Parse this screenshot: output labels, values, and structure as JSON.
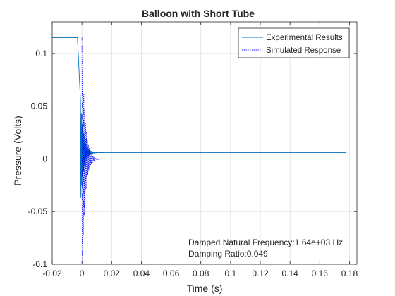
{
  "chart_data": {
    "type": "line",
    "title": "Balloon with Short Tube",
    "xlabel": "Time (s)",
    "ylabel": "Pressure (Volts)",
    "xlim": [
      -0.02,
      0.185
    ],
    "ylim": [
      -0.1,
      0.13
    ],
    "x_ticks": [
      -0.02,
      0,
      0.02,
      0.04,
      0.06,
      0.08,
      0.1,
      0.12,
      0.14,
      0.16,
      0.18
    ],
    "x_tick_labels": [
      "-0.02",
      "0",
      "0.02",
      "0.04",
      "0.06",
      "0.08",
      "0.1",
      "0.12",
      "0.14",
      "0.16",
      "0.18"
    ],
    "y_ticks": [
      -0.1,
      -0.05,
      0,
      0.05,
      0.1
    ],
    "y_tick_labels": [
      "-0.1",
      "-0.05",
      "0",
      "0.05",
      "0.1"
    ],
    "grid": true,
    "legend_position": "top-right",
    "series": [
      {
        "name": "Experimental Results",
        "style": "solid",
        "color": "#0072bd",
        "initial_value": 0.115,
        "step_start": -0.003,
        "step_end": -0.001,
        "equilibrium": 0.006,
        "oscillation_start": -0.001,
        "oscillation_amplitude": 0.05,
        "frequency_hz": 1640,
        "damping_ratio": 0.049,
        "end_time": 0.178
      },
      {
        "name": "Simulated Response",
        "style": "dotted",
        "color": "#0000ff",
        "initial_value": 0.115,
        "start_time": 0,
        "equilibrium": 0,
        "frequency_hz": 1640,
        "damping_ratio": 0.049,
        "end_time": 0.06
      }
    ],
    "annotations": [
      "Damped Natural Frequency:1.64e+03 Hz",
      "Damping Ratio:0.049"
    ]
  },
  "colors": {
    "axis": "#262626",
    "grid": "#dfdfdf",
    "experimental": "#0072bd",
    "simulated": "#0000ff"
  }
}
